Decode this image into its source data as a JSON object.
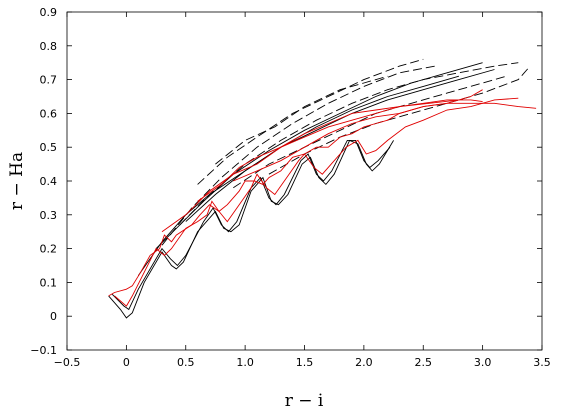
{
  "chart_data": {
    "type": "line",
    "title": "",
    "xlabel": "r − i",
    "ylabel": "r − Ha",
    "xlim": [
      -0.5,
      3.5
    ],
    "ylim": [
      -0.1,
      0.9
    ],
    "xticks": [
      {
        "value": -0.5,
        "label": "−0.5"
      },
      {
        "value": 0,
        "label": "0"
      },
      {
        "value": 0.5,
        "label": "0.5"
      },
      {
        "value": 1.0,
        "label": "1.0"
      },
      {
        "value": 1.5,
        "label": "1.5"
      },
      {
        "value": 2.0,
        "label": "2.0"
      },
      {
        "value": 2.5,
        "label": "2.5"
      },
      {
        "value": 3.0,
        "label": "3.0"
      },
      {
        "value": 3.5,
        "label": "3.5"
      }
    ],
    "yticks": [
      {
        "value": -0.1,
        "label": "−0.1"
      },
      {
        "value": 0,
        "label": "0"
      },
      {
        "value": 0.1,
        "label": "0.1"
      },
      {
        "value": 0.2,
        "label": "0.2"
      },
      {
        "value": 0.3,
        "label": "0.3"
      },
      {
        "value": 0.4,
        "label": "0.4"
      },
      {
        "value": 0.5,
        "label": "0.5"
      },
      {
        "value": 0.6,
        "label": "0.6"
      },
      {
        "value": 0.7,
        "label": "0.7"
      },
      {
        "value": 0.8,
        "label": "0.8"
      },
      {
        "value": 0.9,
        "label": "0.9"
      }
    ],
    "grid": false,
    "colors": {
      "black": "#000000",
      "red": "#e00000"
    },
    "series": [
      {
        "color": "#000000",
        "dash": "solid",
        "points": [
          [
            -0.15,
            0.06
          ],
          [
            -0.05,
            0.02
          ],
          [
            0.0,
            -0.005
          ],
          [
            0.05,
            0.01
          ],
          [
            0.15,
            0.1
          ],
          [
            0.3,
            0.19
          ],
          [
            0.38,
            0.15
          ],
          [
            0.42,
            0.14
          ],
          [
            0.48,
            0.16
          ],
          [
            0.6,
            0.25
          ],
          [
            0.75,
            0.31
          ],
          [
            0.82,
            0.26
          ],
          [
            0.88,
            0.25
          ],
          [
            0.95,
            0.27
          ],
          [
            1.05,
            0.37
          ],
          [
            1.15,
            0.41
          ],
          [
            1.22,
            0.34
          ],
          [
            1.28,
            0.33
          ],
          [
            1.36,
            0.36
          ],
          [
            1.48,
            0.45
          ],
          [
            1.55,
            0.47
          ],
          [
            1.62,
            0.41
          ],
          [
            1.68,
            0.39
          ],
          [
            1.75,
            0.42
          ],
          [
            1.88,
            0.52
          ],
          [
            1.95,
            0.51
          ],
          [
            2.02,
            0.45
          ],
          [
            2.07,
            0.43
          ],
          [
            2.13,
            0.45
          ],
          [
            2.25,
            0.52
          ]
        ]
      },
      {
        "color": "#000000",
        "dash": "solid",
        "points": [
          [
            -0.12,
            0.065
          ],
          [
            -0.02,
            0.03
          ],
          [
            0.02,
            0.02
          ],
          [
            0.1,
            0.08
          ],
          [
            0.3,
            0.2
          ],
          [
            0.37,
            0.17
          ],
          [
            0.43,
            0.15
          ],
          [
            0.5,
            0.18
          ],
          [
            0.65,
            0.28
          ],
          [
            0.73,
            0.32
          ],
          [
            0.8,
            0.27
          ],
          [
            0.86,
            0.25
          ],
          [
            0.93,
            0.28
          ],
          [
            1.05,
            0.38
          ],
          [
            1.13,
            0.41
          ],
          [
            1.2,
            0.35
          ],
          [
            1.26,
            0.33
          ],
          [
            1.33,
            0.36
          ],
          [
            1.47,
            0.46
          ],
          [
            1.53,
            0.48
          ],
          [
            1.6,
            0.42
          ],
          [
            1.66,
            0.4
          ],
          [
            1.73,
            0.43
          ],
          [
            1.86,
            0.52
          ],
          [
            1.93,
            0.52
          ],
          [
            2.0,
            0.46
          ],
          [
            2.05,
            0.44
          ],
          [
            2.12,
            0.46
          ],
          [
            2.22,
            0.5
          ]
        ]
      },
      {
        "color": "#000000",
        "dash": "solid",
        "points": [
          [
            0.1,
            0.12
          ],
          [
            0.3,
            0.22
          ],
          [
            0.5,
            0.3
          ],
          [
            0.7,
            0.36
          ],
          [
            1.0,
            0.43
          ],
          [
            1.3,
            0.5
          ],
          [
            1.6,
            0.55
          ],
          [
            1.9,
            0.6
          ],
          [
            2.2,
            0.64
          ],
          [
            2.5,
            0.67
          ],
          [
            2.8,
            0.7
          ],
          [
            3.1,
            0.73
          ]
        ]
      },
      {
        "color": "#000000",
        "dash": "solid",
        "points": [
          [
            0.25,
            0.2
          ],
          [
            0.45,
            0.27
          ],
          [
            0.65,
            0.34
          ],
          [
            0.9,
            0.42
          ],
          [
            1.2,
            0.49
          ],
          [
            1.5,
            0.55
          ],
          [
            1.8,
            0.6
          ],
          [
            2.1,
            0.65
          ],
          [
            2.4,
            0.69
          ],
          [
            2.7,
            0.72
          ],
          [
            3.0,
            0.75
          ]
        ]
      },
      {
        "color": "#000000",
        "dash": "solid",
        "points": [
          [
            0.5,
            0.28
          ],
          [
            0.75,
            0.36
          ],
          [
            1.0,
            0.43
          ],
          [
            1.3,
            0.5
          ],
          [
            1.6,
            0.56
          ],
          [
            1.9,
            0.61
          ],
          [
            2.2,
            0.65
          ],
          [
            2.5,
            0.68
          ],
          [
            2.8,
            0.71
          ]
        ]
      },
      {
        "color": "#000000",
        "dash": "dashed",
        "points": [
          [
            0.3,
            0.21
          ],
          [
            0.55,
            0.32
          ],
          [
            0.8,
            0.41
          ],
          [
            1.1,
            0.5
          ],
          [
            1.4,
            0.57
          ],
          [
            1.7,
            0.63
          ],
          [
            2.0,
            0.68
          ],
          [
            2.3,
            0.72
          ],
          [
            2.6,
            0.74
          ]
        ]
      },
      {
        "color": "#000000",
        "dash": "dashed",
        "points": [
          [
            0.45,
            0.27
          ],
          [
            0.7,
            0.36
          ],
          [
            1.0,
            0.45
          ],
          [
            1.3,
            0.52
          ],
          [
            1.6,
            0.58
          ],
          [
            1.9,
            0.63
          ],
          [
            2.2,
            0.67
          ],
          [
            2.5,
            0.7
          ],
          [
            2.8,
            0.72
          ],
          [
            3.1,
            0.74
          ],
          [
            3.3,
            0.75
          ]
        ]
      },
      {
        "color": "#000000",
        "dash": "dashed",
        "points": [
          [
            0.9,
            0.38
          ],
          [
            1.2,
            0.45
          ],
          [
            1.5,
            0.5
          ],
          [
            1.8,
            0.55
          ],
          [
            2.1,
            0.6
          ],
          [
            2.4,
            0.63
          ],
          [
            2.7,
            0.66
          ],
          [
            3.0,
            0.69
          ],
          [
            3.2,
            0.71
          ]
        ]
      },
      {
        "color": "#000000",
        "dash": "dashed",
        "points": [
          [
            1.2,
            0.42
          ],
          [
            1.5,
            0.48
          ],
          [
            1.8,
            0.53
          ],
          [
            2.1,
            0.57
          ],
          [
            2.4,
            0.6
          ],
          [
            2.7,
            0.63
          ],
          [
            3.0,
            0.66
          ],
          [
            3.3,
            0.7
          ],
          [
            3.4,
            0.74
          ]
        ]
      },
      {
        "color": "#000000",
        "dash": "dashed",
        "points": [
          [
            0.75,
            0.45
          ],
          [
            1.0,
            0.52
          ],
          [
            1.25,
            0.56
          ],
          [
            1.5,
            0.62
          ],
          [
            1.8,
            0.67
          ],
          [
            2.0,
            0.69
          ],
          [
            2.2,
            0.71
          ]
        ]
      },
      {
        "color": "#000000",
        "dash": "dashed",
        "points": [
          [
            0.6,
            0.39
          ],
          [
            0.85,
            0.47
          ],
          [
            1.1,
            0.53
          ],
          [
            1.4,
            0.6
          ],
          [
            1.7,
            0.65
          ],
          [
            2.0,
            0.7
          ],
          [
            2.3,
            0.74
          ],
          [
            2.5,
            0.76
          ]
        ]
      },
      {
        "color": "#e00000",
        "dash": "solid",
        "points": [
          [
            -0.15,
            0.06
          ],
          [
            -0.1,
            0.07
          ],
          [
            0.0,
            0.08
          ],
          [
            0.05,
            0.09
          ],
          [
            0.12,
            0.13
          ],
          [
            0.2,
            0.18
          ],
          [
            0.28,
            0.2
          ],
          [
            0.32,
            0.24
          ],
          [
            0.38,
            0.22
          ],
          [
            0.42,
            0.24
          ],
          [
            0.55,
            0.27
          ],
          [
            0.62,
            0.3
          ],
          [
            0.7,
            0.33
          ],
          [
            0.78,
            0.31
          ],
          [
            0.85,
            0.33
          ],
          [
            0.95,
            0.37
          ],
          [
            1.0,
            0.4
          ],
          [
            1.08,
            0.4
          ],
          [
            1.15,
            0.39
          ],
          [
            1.2,
            0.41
          ],
          [
            1.3,
            0.43
          ],
          [
            1.4,
            0.47
          ],
          [
            1.5,
            0.48
          ],
          [
            1.6,
            0.5
          ],
          [
            1.7,
            0.5
          ],
          [
            1.8,
            0.53
          ],
          [
            1.9,
            0.54
          ],
          [
            2.0,
            0.56
          ],
          [
            2.1,
            0.57
          ],
          [
            2.2,
            0.58
          ],
          [
            2.3,
            0.6
          ],
          [
            2.5,
            0.62
          ],
          [
            2.7,
            0.63
          ],
          [
            2.9,
            0.63
          ],
          [
            3.1,
            0.63
          ],
          [
            3.3,
            0.62
          ],
          [
            3.45,
            0.615
          ]
        ]
      },
      {
        "color": "#e00000",
        "dash": "solid",
        "points": [
          [
            -0.1,
            0.06
          ],
          [
            0.0,
            0.03
          ],
          [
            0.05,
            0.06
          ],
          [
            0.15,
            0.13
          ],
          [
            0.25,
            0.2
          ],
          [
            0.32,
            0.18
          ],
          [
            0.38,
            0.2
          ],
          [
            0.5,
            0.26
          ],
          [
            0.6,
            0.28
          ],
          [
            0.68,
            0.3
          ],
          [
            0.72,
            0.34
          ],
          [
            0.78,
            0.31
          ],
          [
            0.85,
            0.28
          ],
          [
            0.95,
            0.33
          ],
          [
            1.05,
            0.38
          ],
          [
            1.1,
            0.42
          ],
          [
            1.18,
            0.38
          ],
          [
            1.25,
            0.36
          ],
          [
            1.35,
            0.41
          ],
          [
            1.45,
            0.46
          ],
          [
            1.5,
            0.48
          ],
          [
            1.58,
            0.44
          ],
          [
            1.65,
            0.42
          ],
          [
            1.75,
            0.46
          ],
          [
            1.85,
            0.5
          ],
          [
            1.95,
            0.52
          ],
          [
            2.02,
            0.48
          ],
          [
            2.1,
            0.49
          ],
          [
            2.2,
            0.52
          ],
          [
            2.35,
            0.56
          ],
          [
            2.5,
            0.58
          ],
          [
            2.7,
            0.61
          ],
          [
            2.9,
            0.62
          ],
          [
            3.1,
            0.64
          ],
          [
            3.3,
            0.645
          ]
        ]
      },
      {
        "color": "#e00000",
        "dash": "solid",
        "points": [
          [
            0.3,
            0.25
          ],
          [
            0.5,
            0.3
          ],
          [
            0.7,
            0.37
          ],
          [
            0.9,
            0.42
          ],
          [
            1.1,
            0.45
          ],
          [
            1.3,
            0.5
          ],
          [
            1.5,
            0.53
          ],
          [
            1.7,
            0.56
          ],
          [
            1.9,
            0.58
          ],
          [
            2.1,
            0.6
          ],
          [
            2.3,
            0.62
          ],
          [
            2.5,
            0.63
          ],
          [
            2.7,
            0.64
          ],
          [
            2.9,
            0.64
          ],
          [
            3.0,
            0.635
          ]
        ]
      },
      {
        "color": "#e00000",
        "dash": "solid",
        "points": [
          [
            0.6,
            0.34
          ],
          [
            0.8,
            0.39
          ],
          [
            0.95,
            0.44
          ],
          [
            1.1,
            0.47
          ],
          [
            1.3,
            0.5
          ],
          [
            1.5,
            0.54
          ],
          [
            1.7,
            0.57
          ],
          [
            1.9,
            0.6
          ],
          [
            2.1,
            0.61
          ],
          [
            2.3,
            0.62
          ],
          [
            2.55,
            0.63
          ],
          [
            2.8,
            0.64
          ]
        ]
      },
      {
        "color": "#e00000",
        "dash": "solid",
        "points": [
          [
            0.9,
            0.4
          ],
          [
            1.1,
            0.43
          ],
          [
            1.3,
            0.46
          ],
          [
            1.5,
            0.5
          ],
          [
            1.7,
            0.54
          ],
          [
            1.9,
            0.57
          ],
          [
            2.1,
            0.59
          ],
          [
            2.3,
            0.6
          ],
          [
            2.5,
            0.62
          ],
          [
            2.7,
            0.63
          ],
          [
            2.9,
            0.65
          ],
          [
            3.0,
            0.67
          ]
        ]
      }
    ]
  }
}
